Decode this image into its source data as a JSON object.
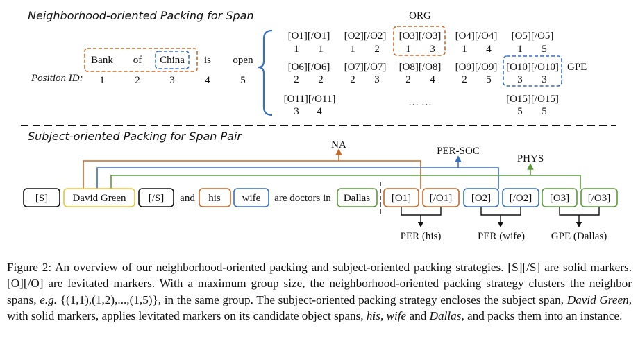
{
  "top_section": {
    "title": "Neighborhood-oriented Packing for Span",
    "words": [
      "Bank",
      "of",
      "China",
      "is",
      "open"
    ],
    "position_label": "Position ID:",
    "position_ids": [
      "1",
      "2",
      "3",
      "4",
      "5"
    ],
    "marker_rows": [
      [
        {
          "marker": "[O1][/O1]",
          "ids": [
            "1",
            "1"
          ]
        },
        {
          "marker": "[O2][/O2]",
          "ids": [
            "1",
            "2"
          ]
        },
        {
          "marker": "[O3][/O3]",
          "ids": [
            "1",
            "3"
          ]
        },
        {
          "marker": "[O4][/O4]",
          "ids": [
            "1",
            "4"
          ]
        },
        {
          "marker": "[O5][/O5]",
          "ids": [
            "1",
            "5"
          ]
        }
      ],
      [
        {
          "marker": "[O6][/O6]",
          "ids": [
            "2",
            "2"
          ]
        },
        {
          "marker": "[O7][/O7]",
          "ids": [
            "2",
            "3"
          ]
        },
        {
          "marker": "[O8][/O8]",
          "ids": [
            "2",
            "4"
          ]
        },
        {
          "marker": "[O9][/O9]",
          "ids": [
            "2",
            "5"
          ]
        },
        {
          "marker": "[O10][/O10]",
          "ids": [
            "3",
            "3"
          ]
        }
      ],
      [
        {
          "marker": "[O11][/O11]",
          "ids": [
            "3",
            "4"
          ]
        },
        {
          "marker": "[O15][/O15]",
          "ids": [
            "5",
            "5"
          ]
        }
      ]
    ],
    "ellipsis": "… …",
    "org_label": "ORG",
    "gpe_label": "GPE"
  },
  "bottom_section": {
    "title": "Subject-oriented Packing for Span Pair",
    "tokens": [
      "[S]",
      "David Green",
      "[/S]",
      "and",
      "his",
      "wife",
      "are doctors in",
      "Dallas"
    ],
    "markers": [
      "[O1]",
      "[/O1]",
      "[O2]",
      "[/O2]",
      "[O3]",
      "[/O3]"
    ],
    "relations": [
      "NA",
      "PER-SOC",
      "PHYS"
    ],
    "entity_types": [
      "PER (his)",
      "PER (wife)",
      "GPE (Dallas)"
    ]
  },
  "caption": {
    "p1": "Figure 2: An overview of our neighborhood-oriented packing and subject-oriented packing strategies. [S][/S] are solid markers. [O][/O] are levitated markers. With a maximum group size, the neighborhood-oriented packing strategy clusters the neighbor spans, ",
    "eg": "e.g.",
    "p2": " {(1,1),(1,2),...,(1,5)}, in the same group. The subject-oriented packing strategy encloses the subject span, ",
    "subject": "David Green",
    "p3": ", with solid markers, applies levitated markers on its candidate object spans, ",
    "obj1": "his",
    "sep1": ", ",
    "obj2": "wife",
    "sep2": " and ",
    "obj3": "Dallas",
    "p4": ", and packs them into an instance."
  },
  "colors": {
    "orange": "#c8682a",
    "blue": "#3a6fbf",
    "green": "#5b9a3c",
    "yellow": "#e8c53a",
    "black": "#111111"
  }
}
